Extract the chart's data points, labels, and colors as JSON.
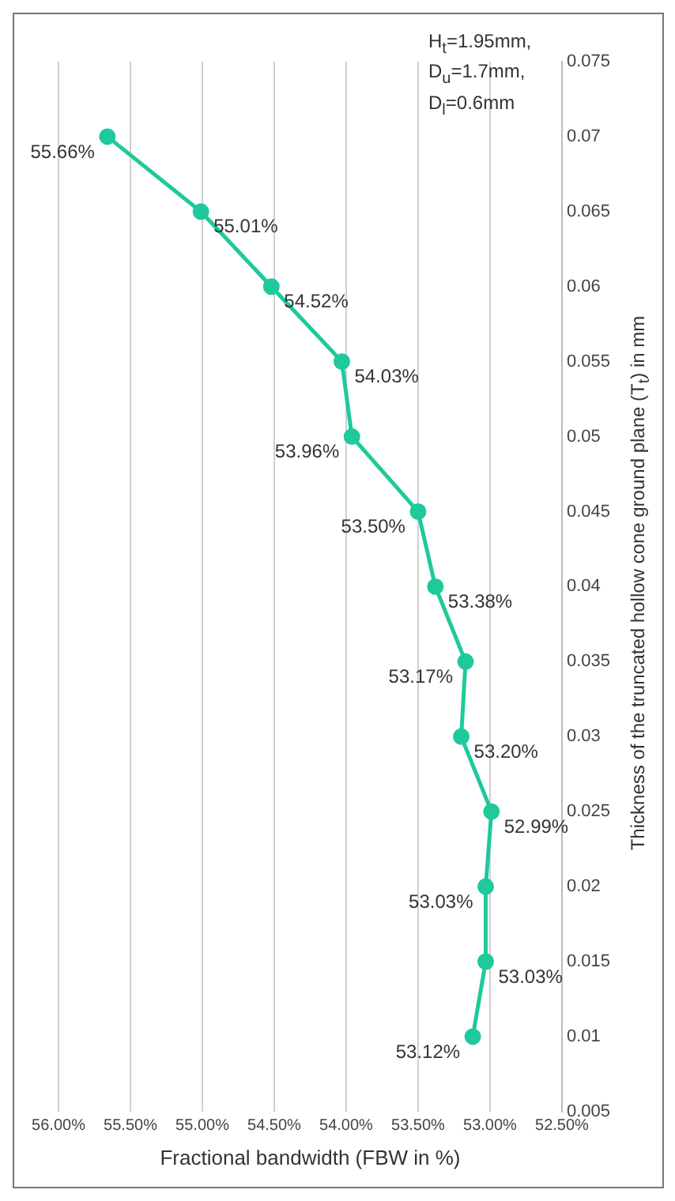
{
  "chart_data": {
    "type": "line",
    "xlabel": "Fractional bandwidth (FBW in %)",
    "ylabel": "Thickness of the truncated hollow cone ground plane (T$_{t}$) in mm",
    "annotations": [
      "H$_{t}$=1.95mm,",
      "D$_{u}$=1.7mm,",
      "D$_{l}$=0.6mm",
      {
        "text": "53.12%",
        "x": 53.12,
        "y": 0.01
      },
      {
        "text": "53.03%",
        "x": 53.03,
        "y": 0.015
      },
      {
        "text": "53.03%",
        "x": 53.03,
        "y": 0.02
      },
      {
        "text": "52.99%",
        "x": 52.99,
        "y": 0.025
      },
      {
        "text": "53.20%",
        "x": 53.2,
        "y": 0.03
      },
      {
        "text": "53.17%",
        "x": 53.17,
        "y": 0.035
      },
      {
        "text": "53.38%",
        "x": 53.38,
        "y": 0.04
      },
      {
        "text": "53.50%",
        "x": 53.5,
        "y": 0.045
      },
      {
        "text": "53.96%",
        "x": 53.96,
        "y": 0.05
      },
      {
        "text": "54.03%",
        "x": 54.03,
        "y": 0.055
      },
      {
        "text": "54.52%",
        "x": 54.52,
        "y": 0.06
      },
      {
        "text": "55.01%",
        "x": 55.01,
        "y": 0.065
      },
      {
        "text": "55.66%",
        "x": 55.66,
        "y": 0.07
      }
    ],
    "series": [
      {
        "color": "#1fc99b",
        "x": [
          53.12,
          53.03,
          53.03,
          52.99,
          53.2,
          53.17,
          53.38,
          53.5,
          53.96,
          54.03,
          54.52,
          55.01,
          55.66
        ],
        "values": [
          0.01,
          0.015,
          0.02,
          0.025,
          0.03,
          0.035,
          0.04,
          0.045,
          0.05,
          0.055,
          0.06,
          0.065,
          0.07
        ]
      }
    ],
    "ylim": [
      0.005,
      0.075
    ],
    "yticks": [
      0.005,
      0.01,
      0.015,
      0.02,
      0.025,
      0.03,
      0.035,
      0.04,
      0.045,
      0.05,
      0.055,
      0.06,
      0.065,
      0.07,
      0.075
    ],
    "xlim": [
      56,
      52.5
    ],
    "xticks": [
      {
        "value": 56,
        "label": "56.00%"
      },
      {
        "value": 55.5,
        "label": "55.50%"
      },
      {
        "value": 55,
        "label": "55.00%"
      },
      {
        "value": 54.5,
        "label": "54.50%"
      },
      {
        "value": 54,
        "label": "54.00%"
      },
      {
        "value": 53.5,
        "label": "53.50%"
      },
      {
        "value": 53,
        "label": "53.00%"
      },
      {
        "value": 52.5,
        "label": "52.50%"
      }
    ],
    "grid": "x",
    "legend": false,
    "marker": "circle",
    "line_style": "solid"
  }
}
